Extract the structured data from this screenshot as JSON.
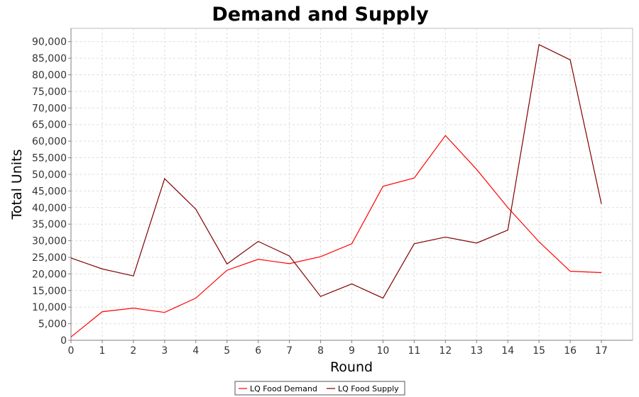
{
  "chart_data": {
    "type": "line",
    "title": "Demand and Supply",
    "xlabel": "Round",
    "ylabel": "Total Units",
    "x": [
      0,
      1,
      2,
      3,
      4,
      5,
      6,
      7,
      8,
      9,
      10,
      11,
      12,
      13,
      14,
      15,
      16,
      17
    ],
    "xlim": [
      0,
      18
    ],
    "ylim": [
      0,
      94000
    ],
    "yticks": [
      0,
      5000,
      10000,
      15000,
      20000,
      25000,
      30000,
      35000,
      40000,
      45000,
      50000,
      55000,
      60000,
      65000,
      70000,
      75000,
      80000,
      85000,
      90000
    ],
    "ytick_labels": [
      "0",
      "5,000",
      "10,000",
      "15,000",
      "20,000",
      "25,000",
      "30,000",
      "35,000",
      "40,000",
      "45,000",
      "50,000",
      "55,000",
      "60,000",
      "65,000",
      "70,000",
      "75,000",
      "80,000",
      "85,000",
      "90,000"
    ],
    "xtick_labels": [
      "0",
      "1",
      "2",
      "3",
      "4",
      "5",
      "6",
      "7",
      "8",
      "9",
      "10",
      "11",
      "12",
      "13",
      "14",
      "15",
      "16",
      "17"
    ],
    "grid": true,
    "legend_position": "bottom-center",
    "series": [
      {
        "name": "LQ Food Demand",
        "color": "#ff0000",
        "values": [
          1000,
          8600,
          9700,
          8400,
          12700,
          21100,
          24400,
          23100,
          25200,
          29100,
          46400,
          48900,
          61700,
          51500,
          40000,
          29700,
          20800,
          20400
        ]
      },
      {
        "name": "LQ Food Supply",
        "color": "#800000",
        "values": [
          24800,
          21500,
          19400,
          48700,
          39500,
          23000,
          29800,
          25400,
          13200,
          17000,
          12700,
          29100,
          31100,
          29300,
          33200,
          89100,
          84500,
          41100
        ]
      }
    ]
  }
}
